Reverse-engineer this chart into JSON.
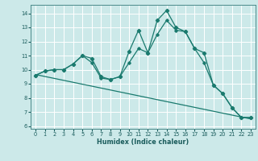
{
  "xlabel": "Humidex (Indice chaleur)",
  "xlim": [
    -0.5,
    23.5
  ],
  "ylim": [
    5.8,
    14.6
  ],
  "yticks": [
    6,
    7,
    8,
    9,
    10,
    11,
    12,
    13,
    14
  ],
  "xticks": [
    0,
    1,
    2,
    3,
    4,
    5,
    6,
    7,
    8,
    9,
    10,
    11,
    12,
    13,
    14,
    15,
    16,
    17,
    18,
    19,
    20,
    21,
    22,
    23
  ],
  "bg_color": "#cce9e9",
  "grid_color": "#ffffff",
  "line_color": "#1a7a6e",
  "main_x": [
    0,
    1,
    2,
    3,
    4,
    5,
    6,
    7,
    8,
    9,
    10,
    11,
    12,
    13,
    14,
    15,
    16,
    17,
    18,
    19,
    20,
    21,
    22,
    23
  ],
  "main_y": [
    9.6,
    9.9,
    10.0,
    10.0,
    10.4,
    11.0,
    10.8,
    9.5,
    9.3,
    9.5,
    11.3,
    12.8,
    11.2,
    13.5,
    14.2,
    13.0,
    12.7,
    11.5,
    11.2,
    8.9,
    8.3,
    7.3,
    6.6,
    6.6
  ],
  "curve2_x": [
    0,
    1,
    2,
    3,
    4,
    5,
    6,
    7,
    8,
    9,
    10,
    11,
    12,
    13,
    14,
    15,
    16,
    17,
    18,
    19,
    20,
    21,
    22,
    23
  ],
  "curve2_y": [
    9.6,
    9.9,
    10.0,
    10.0,
    10.4,
    11.0,
    10.5,
    9.4,
    9.3,
    9.5,
    10.5,
    11.5,
    11.2,
    12.5,
    13.5,
    12.8,
    12.7,
    11.5,
    10.5,
    8.9,
    8.3,
    7.3,
    6.6,
    6.6
  ],
  "trend_x": [
    0,
    23
  ],
  "trend_y": [
    9.65,
    6.5
  ]
}
